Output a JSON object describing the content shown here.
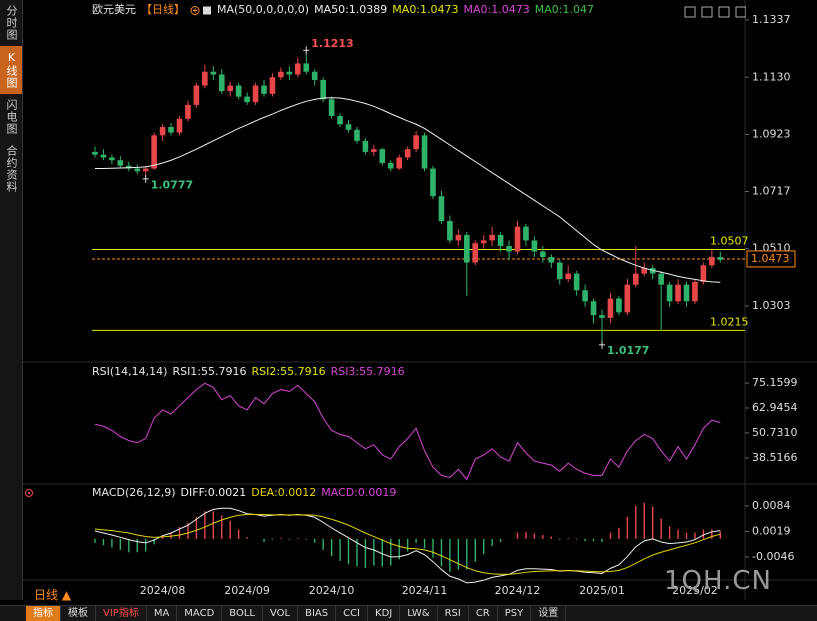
{
  "ui": {
    "sidebar": [
      "分时图",
      "K线图",
      "闪电图",
      "合约资料"
    ],
    "period_button": "日线 ▲",
    "toolbar": [
      "指标",
      "模板",
      "VIP指标",
      "MA",
      "MACD",
      "BOLL",
      "VOL",
      "BIAS",
      "CCI",
      "KDJ",
      "LW&",
      "RSI",
      "CR",
      "PSY",
      "设置"
    ],
    "watermark": "1QH.CN"
  },
  "chart_data": [
    {
      "type": "candlestick",
      "title": "欧元美元",
      "subtitle": "【日线】",
      "indicator": "MA(50,0,0,0,0,0)",
      "title_color": "#e6e6e6",
      "subtitle_color": "#ff8c1a",
      "categories": [
        null,
        null,
        null,
        null,
        null,
        null,
        null,
        null,
        "2024/08",
        null,
        null,
        null,
        null,
        null,
        null,
        null,
        null,
        null,
        "2024/09",
        null,
        null,
        null,
        null,
        null,
        null,
        null,
        null,
        null,
        "2024/10",
        null,
        null,
        null,
        null,
        null,
        null,
        null,
        null,
        null,
        null,
        "2024/11",
        null,
        null,
        null,
        null,
        null,
        null,
        null,
        null,
        null,
        null,
        "2024/12",
        null,
        null,
        null,
        null,
        null,
        null,
        null,
        null,
        null,
        "2025/01",
        null,
        null,
        null,
        null,
        null,
        null,
        null,
        null,
        null,
        null,
        "2025/02",
        null,
        null,
        null
      ],
      "ohlc": [
        [
          1.086,
          1.088,
          1.084,
          1.085
        ],
        [
          1.085,
          1.087,
          1.083,
          1.084
        ],
        [
          1.084,
          1.085,
          1.0815,
          1.083
        ],
        [
          1.083,
          1.0845,
          1.08,
          1.081
        ],
        [
          1.081,
          1.0825,
          1.079,
          1.08
        ],
        [
          1.08,
          1.0815,
          1.078,
          1.079
        ],
        [
          1.079,
          1.081,
          1.0777,
          1.08
        ],
        [
          1.08,
          1.093,
          1.0795,
          1.092
        ],
        [
          1.092,
          1.096,
          1.09,
          1.095
        ],
        [
          1.095,
          1.0965,
          1.092,
          1.093
        ],
        [
          1.093,
          1.099,
          1.092,
          1.098
        ],
        [
          1.098,
          1.1045,
          1.097,
          1.103
        ],
        [
          1.103,
          1.111,
          1.102,
          1.11
        ],
        [
          1.11,
          1.1175,
          1.109,
          1.115
        ],
        [
          1.115,
          1.117,
          1.112,
          1.114
        ],
        [
          1.114,
          1.116,
          1.107,
          1.108
        ],
        [
          1.108,
          1.1115,
          1.106,
          1.11
        ],
        [
          1.11,
          1.111,
          1.105,
          1.106
        ],
        [
          1.106,
          1.1075,
          1.103,
          1.104
        ],
        [
          1.104,
          1.111,
          1.103,
          1.11
        ],
        [
          1.11,
          1.112,
          1.106,
          1.107
        ],
        [
          1.107,
          1.1145,
          1.106,
          1.113
        ],
        [
          1.113,
          1.1165,
          1.112,
          1.115
        ],
        [
          1.115,
          1.117,
          1.112,
          1.114
        ],
        [
          1.114,
          1.12,
          1.113,
          1.118
        ],
        [
          1.118,
          1.1213,
          1.114,
          1.115
        ],
        [
          1.115,
          1.116,
          1.11,
          1.112
        ],
        [
          1.112,
          1.113,
          1.104,
          1.105
        ],
        [
          1.105,
          1.106,
          1.098,
          1.099
        ],
        [
          1.099,
          1.1,
          1.095,
          1.096
        ],
        [
          1.096,
          1.0975,
          1.093,
          1.094
        ],
        [
          1.094,
          1.095,
          1.089,
          1.09
        ],
        [
          1.09,
          1.091,
          1.085,
          1.086
        ],
        [
          1.086,
          1.0885,
          1.0845,
          1.087
        ],
        [
          1.087,
          1.0875,
          1.081,
          1.082
        ],
        [
          1.082,
          1.083,
          1.079,
          1.08
        ],
        [
          1.08,
          1.085,
          1.0795,
          1.084
        ],
        [
          1.084,
          1.088,
          1.083,
          1.087
        ],
        [
          1.087,
          1.0935,
          1.086,
          1.092
        ],
        [
          1.092,
          1.093,
          1.079,
          1.08
        ],
        [
          1.08,
          1.081,
          1.069,
          1.07
        ],
        [
          1.07,
          1.072,
          1.06,
          1.061
        ],
        [
          1.061,
          1.063,
          1.053,
          1.054
        ],
        [
          1.054,
          1.058,
          1.052,
          1.056
        ],
        [
          1.056,
          1.057,
          1.034,
          1.046
        ],
        [
          1.046,
          1.054,
          1.045,
          1.053
        ],
        [
          1.053,
          1.056,
          1.051,
          1.054
        ],
        [
          1.054,
          1.059,
          1.052,
          1.056
        ],
        [
          1.056,
          1.057,
          1.05,
          1.052
        ],
        [
          1.052,
          1.054,
          1.047,
          1.05
        ],
        [
          1.05,
          1.061,
          1.049,
          1.059
        ],
        [
          1.059,
          1.06,
          1.052,
          1.054
        ],
        [
          1.054,
          1.0555,
          1.048,
          1.05
        ],
        [
          1.05,
          1.052,
          1.046,
          1.048
        ],
        [
          1.048,
          1.049,
          1.044,
          1.046
        ],
        [
          1.046,
          1.047,
          1.038,
          1.04
        ],
        [
          1.04,
          1.045,
          1.039,
          1.042
        ],
        [
          1.042,
          1.043,
          1.034,
          1.036
        ],
        [
          1.036,
          1.038,
          1.03,
          1.032
        ],
        [
          1.032,
          1.033,
          1.024,
          1.027
        ],
        [
          1.027,
          1.029,
          1.0177,
          1.026
        ],
        [
          1.026,
          1.035,
          1.024,
          1.033
        ],
        [
          1.033,
          1.034,
          1.027,
          1.028
        ],
        [
          1.028,
          1.04,
          1.027,
          1.038
        ],
        [
          1.038,
          1.052,
          1.037,
          1.042
        ],
        [
          1.042,
          1.046,
          1.041,
          1.044
        ],
        [
          1.044,
          1.045,
          1.04,
          1.042
        ],
        [
          1.042,
          1.043,
          1.0215,
          1.038
        ],
        [
          1.038,
          1.039,
          1.03,
          1.032
        ],
        [
          1.032,
          1.04,
          1.031,
          1.038
        ],
        [
          1.038,
          1.039,
          1.03,
          1.032
        ],
        [
          1.032,
          1.04,
          1.031,
          1.039
        ],
        [
          1.039,
          1.046,
          1.038,
          1.045
        ],
        [
          1.045,
          1.0507,
          1.044,
          1.048
        ],
        [
          1.048,
          1.05,
          1.046,
          1.047
        ]
      ],
      "up_color": "#e8474a",
      "down_color": "#2fb36b",
      "series": [
        {
          "name": "MA50:1.0389",
          "color": "#f0f0f0",
          "values": [
            1.08,
            1.08,
            1.0801,
            1.0802,
            1.0803,
            1.0804,
            1.0806,
            1.0812,
            1.082,
            1.083,
            1.0842,
            1.0856,
            1.087,
            1.0885,
            1.09,
            1.0915,
            1.093,
            1.0945,
            1.0958,
            1.0972,
            1.0985,
            1.0997,
            1.101,
            1.1022,
            1.1033,
            1.1043,
            1.105,
            1.1055,
            1.1056,
            1.1055,
            1.105,
            1.1043,
            1.1035,
            1.1025,
            1.1012,
            1.0998,
            1.0985,
            1.0972,
            1.096,
            1.0945,
            1.0925,
            1.0905,
            1.0885,
            1.0865,
            1.0845,
            1.0825,
            1.0805,
            1.0785,
            1.0765,
            1.0745,
            1.0725,
            1.0705,
            1.0685,
            1.0665,
            1.0645,
            1.0625,
            1.06,
            1.0575,
            1.055,
            1.0525,
            1.0505,
            1.049,
            1.0475,
            1.0462,
            1.045,
            1.044,
            1.0432,
            1.0425,
            1.0418,
            1.041,
            1.0404,
            1.0399,
            1.0394,
            1.039,
            1.0389
          ]
        }
      ],
      "legend": [
        {
          "text": "MA0:1.0473",
          "color": "#e6e600"
        },
        {
          "text": "MA0:1.0473",
          "color": "#d946d9"
        },
        {
          "text": "MA0:1.047",
          "color": "#3cc04a"
        }
      ],
      "ylim": [
        1.018,
        1.1337
      ],
      "yticks": [
        1.1337,
        {
          "value": 1.113,
          "label": "1.1130"
        },
        1.0923,
        1.0717,
        {
          "value": 1.051,
          "label": "1.0510"
        },
        1.0303
      ],
      "grid": false,
      "hlines": [
        {
          "value": 1.0507,
          "color": "#e6e600"
        },
        {
          "value": 1.0215,
          "color": "#e6e600"
        }
      ],
      "last_price": {
        "value": 1.0473,
        "color": "#ff8c1a"
      },
      "annotations": [
        {
          "value": 1.1213,
          "kind": "high",
          "color": "#ff5050"
        },
        {
          "value": 1.0777,
          "kind": "low",
          "color": "#3cc07a"
        },
        {
          "value": 1.0177,
          "kind": "low",
          "color": "#3cc07a"
        }
      ]
    },
    {
      "type": "line",
      "title": "RSI(14,14,14)",
      "title_color": "#e6e6e6",
      "series": [
        {
          "name": "RSI1:55.7916",
          "color": "#d946d9",
          "legend_color": "#e6e6e6",
          "values": [
            55,
            54,
            52,
            49,
            47,
            46,
            48,
            58,
            62,
            60,
            64,
            68,
            72,
            75,
            73,
            67,
            69,
            64,
            62,
            68,
            65,
            70,
            72,
            71,
            74,
            70,
            66,
            58,
            52,
            50,
            49,
            46,
            43,
            45,
            40,
            38,
            44,
            48,
            53,
            42,
            34,
            30,
            29,
            33,
            28,
            38,
            40,
            43,
            39,
            37,
            46,
            41,
            37,
            36,
            35,
            32,
            36,
            33,
            31,
            30,
            30,
            38,
            34,
            42,
            47,
            50,
            48,
            42,
            37,
            44,
            38,
            45,
            53,
            57,
            55.7916
          ]
        }
      ],
      "legend": [
        {
          "text": "RSI2:55.7916",
          "color": "#e6e600"
        },
        {
          "text": "RSI3:55.7916",
          "color": "#d946d9"
        }
      ],
      "ylim": [
        25.3,
        77.6
      ],
      "yticks": [
        75.1599,
        62.9454,
        {
          "value": 50.731,
          "label": "50.7310"
        },
        38.5166
      ]
    },
    {
      "type": "macd",
      "title": "MACD(26,12,9)",
      "title_color": "#e6e6e6",
      "series": [
        {
          "name": "DIFF:0.0021",
          "color": "#f0f0f0",
          "values": [
            0.002,
            0.0015,
            0.001,
            0.0004,
            -0.0002,
            -0.0007,
            -0.001,
            -0.0003,
            0.0008,
            0.0015,
            0.0025,
            0.0035,
            0.005,
            0.0065,
            0.0075,
            0.0078,
            0.0078,
            0.0072,
            0.0064,
            0.0062,
            0.0058,
            0.006,
            0.0062,
            0.006,
            0.0062,
            0.006,
            0.0055,
            0.0042,
            0.0028,
            0.0015,
            0.0003,
            -0.001,
            -0.0022,
            -0.0028,
            -0.0038,
            -0.0046,
            -0.0045,
            -0.004,
            -0.003,
            -0.004,
            -0.0058,
            -0.0078,
            -0.0095,
            -0.0102,
            -0.0112,
            -0.011,
            -0.0105,
            -0.0098,
            -0.0094,
            -0.009,
            -0.008,
            -0.0076,
            -0.0076,
            -0.0077,
            -0.0078,
            -0.0082,
            -0.008,
            -0.0082,
            -0.0085,
            -0.0086,
            -0.0088,
            -0.0075,
            -0.0066,
            -0.0045,
            -0.002,
            -0.0005,
            0.0,
            -0.0008,
            -0.0012,
            -0.001,
            -0.0008,
            -0.0002,
            0.001,
            0.0018,
            0.0021
          ]
        },
        {
          "name": "DEA:0.0012",
          "color": "#e6d200",
          "values": [
            0.0025,
            0.0023,
            0.0021,
            0.0018,
            0.0015,
            0.001,
            0.0006,
            0.0004,
            0.0005,
            0.0007,
            0.001,
            0.0015,
            0.0022,
            0.003,
            0.004,
            0.0048,
            0.0055,
            0.006,
            0.0062,
            0.0062,
            0.0062,
            0.0061,
            0.0061,
            0.0061,
            0.0061,
            0.0061,
            0.006,
            0.0056,
            0.005,
            0.0043,
            0.0035,
            0.0025,
            0.0015,
            0.0006,
            -0.0003,
            -0.0012,
            -0.0019,
            -0.0024,
            -0.0025,
            -0.0028,
            -0.0034,
            -0.0043,
            -0.0053,
            -0.0063,
            -0.0073,
            -0.0081,
            -0.0086,
            -0.0089,
            -0.009,
            -0.009,
            -0.0088,
            -0.0085,
            -0.0083,
            -0.0082,
            -0.0081,
            -0.0081,
            -0.0081,
            -0.0081,
            -0.0082,
            -0.0083,
            -0.0084,
            -0.0083,
            -0.008,
            -0.0073,
            -0.0062,
            -0.0051,
            -0.0041,
            -0.0034,
            -0.0028,
            -0.0022,
            -0.0016,
            -0.001,
            -0.0002,
            0.0006,
            0.0012
          ]
        }
      ],
      "histogram": {
        "name": "MACD:0.0019",
        "color": "#d946d9",
        "up_color": "#e8474a",
        "down_color": "#2fb36b",
        "values": [
          -0.001,
          -0.0016,
          -0.0022,
          -0.0028,
          -0.0034,
          -0.0034,
          -0.0032,
          -0.0014,
          0.0006,
          0.0016,
          0.003,
          0.004,
          0.0056,
          0.007,
          0.007,
          0.006,
          0.0046,
          0.0024,
          0.0004,
          0,
          -0.0008,
          -0.0002,
          0.0002,
          -0.0002,
          0.0002,
          -0.0002,
          -0.001,
          -0.0028,
          -0.0044,
          -0.0056,
          -0.0064,
          -0.007,
          -0.0074,
          -0.0068,
          -0.007,
          -0.0068,
          -0.0052,
          -0.0032,
          -0.001,
          -0.0024,
          -0.0048,
          -0.007,
          -0.0084,
          -0.0078,
          -0.0078,
          -0.0058,
          -0.0038,
          -0.0018,
          -0.0008,
          0,
          0.0016,
          0.0018,
          0.0014,
          0.001,
          0.0006,
          -0.0002,
          0.0002,
          -0.0002,
          -0.0006,
          -0.0006,
          -0.0008,
          0.0016,
          0.0028,
          0.0056,
          0.0084,
          0.0092,
          0.0082,
          0.0052,
          0.0032,
          0.0024,
          0.0016,
          0.0016,
          0.0024,
          0.0024,
          0.0019
        ]
      },
      "ylim": [
        -0.013,
        0.0104
      ],
      "yticks": [
        0.0084,
        0.0019,
        -0.0046
      ]
    }
  ]
}
